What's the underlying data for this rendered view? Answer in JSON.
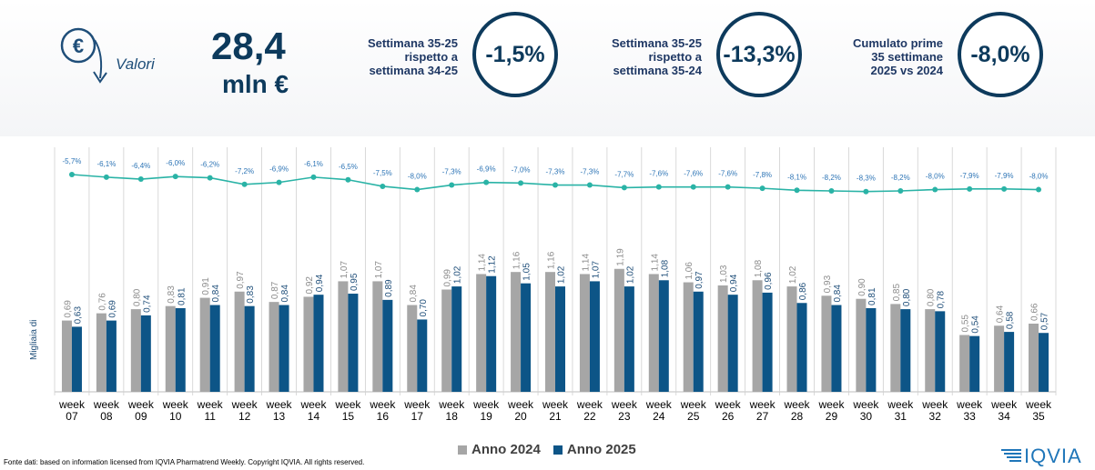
{
  "header": {
    "valori_label": "Valori",
    "big_value": "28,4",
    "big_unit": "mln €",
    "kpis": [
      {
        "label": "Settimana 35-25\nrispetto a\nsettimana 34-25",
        "value": "-1,5%"
      },
      {
        "label": "Settimana 35-25\nrispetto a\nsettimana 35-24",
        "value": "-13,3%"
      },
      {
        "label": "Cumulato prime\n35 settimane\n2025 vs 2024",
        "value": "-8,0%"
      }
    ]
  },
  "colors": {
    "anno_2024": "#a6a6a6",
    "anno_2025": "#0d5587",
    "trend_line": "#2ab3a6",
    "kpi_dark": "#0d3a5c"
  },
  "chart_data": {
    "type": "bar",
    "ylabel": "Migliaia di",
    "categories": [
      "week\n07",
      "week\n08",
      "week\n09",
      "week\n10",
      "week\n11",
      "week\n12",
      "week\n13",
      "week\n14",
      "week\n15",
      "week\n16",
      "week\n17",
      "week\n18",
      "week\n19",
      "week\n20",
      "week\n21",
      "week\n22",
      "week\n23",
      "week\n24",
      "week\n25",
      "week\n26",
      "week\n27",
      "week\n28",
      "week\n29",
      "week\n30",
      "week\n31",
      "week\n32",
      "week\n33",
      "week\n34",
      "week\n35"
    ],
    "series": [
      {
        "name": "Anno 2024",
        "values": [
          0.69,
          0.76,
          0.8,
          0.83,
          0.91,
          0.97,
          0.87,
          0.92,
          1.07,
          1.07,
          0.84,
          0.99,
          1.14,
          1.16,
          1.16,
          1.14,
          1.19,
          1.14,
          1.06,
          1.03,
          1.08,
          1.02,
          0.93,
          0.9,
          0.85,
          0.8,
          0.55,
          0.64,
          0.66
        ]
      },
      {
        "name": "Anno 2025",
        "values": [
          0.63,
          0.69,
          0.74,
          0.81,
          0.84,
          0.83,
          0.84,
          0.94,
          0.95,
          0.89,
          0.7,
          1.02,
          1.12,
          1.05,
          1.02,
          1.07,
          1.02,
          1.08,
          0.97,
          0.94,
          0.96,
          0.86,
          0.84,
          0.81,
          0.8,
          0.78,
          0.54,
          0.58,
          0.57
        ]
      }
    ],
    "bar_labels_2024": [
      "0,69",
      "0,76",
      "0,80",
      "0,83",
      "0,91",
      "0,97",
      "0,87",
      "0,92",
      "1,07",
      "1,07",
      "0,84",
      "0,99",
      "1,14",
      "1,16",
      "1,16",
      "1,14",
      "1,19",
      "1,14",
      "1,06",
      "1,03",
      "1,08",
      "1,02",
      "0,93",
      "0,90",
      "0,85",
      "0,80",
      "0,55",
      "0,64",
      "0,66"
    ],
    "bar_labels_2025": [
      "0,63",
      "0,69",
      "0,74",
      "0,81",
      "0,84",
      "0,83",
      "0,84",
      "0,94",
      "0,95",
      "0,89",
      "0,70",
      "1,02",
      "1,12",
      "1,05",
      "1,02",
      "1,07",
      "1,02",
      "1,08",
      "0,97",
      "0,94",
      "0,96",
      "0,86",
      "0,84",
      "0,81",
      "0,80",
      "0,78",
      "0,54",
      "0,58",
      "0,57"
    ],
    "trend": {
      "values": [
        -5.7,
        -6.1,
        -6.4,
        -6.0,
        -6.2,
        -7.2,
        -6.9,
        -6.1,
        -6.5,
        -7.5,
        -8.0,
        -7.3,
        -6.9,
        -7.0,
        -7.3,
        -7.3,
        -7.7,
        -7.6,
        -7.6,
        -7.6,
        -7.8,
        -8.1,
        -8.2,
        -8.3,
        -8.2,
        -8.0,
        -7.9,
        -7.9,
        -8.0
      ],
      "labels": [
        "-5,7%",
        "-6,1%",
        "-6,4%",
        "-6,0%",
        "-6,2%",
        "-7,2%",
        "-6,9%",
        "-6,1%",
        "-6,5%",
        "-7,5%",
        "-8,0%",
        "-7,3%",
        "-6,9%",
        "-7,0%",
        "-7,3%",
        "-7,3%",
        "-7,7%",
        "-7,6%",
        "-7,6%",
        "-7,6%",
        "-7,8%",
        "-8,1%",
        "-8,2%",
        "-8,3%",
        "-8,2%",
        "-8,0%",
        "-7,9%",
        "-7,9%",
        "-8,0%"
      ]
    },
    "ylim": [
      0,
      2.2
    ],
    "legend": "bottom",
    "grid": false
  },
  "footer": {
    "source": "Fonte dati: based on information licensed from IQVIA Pharmatrend Weekly. Copyright IQVIA. All rights reserved.",
    "logo": "IQVIA"
  }
}
